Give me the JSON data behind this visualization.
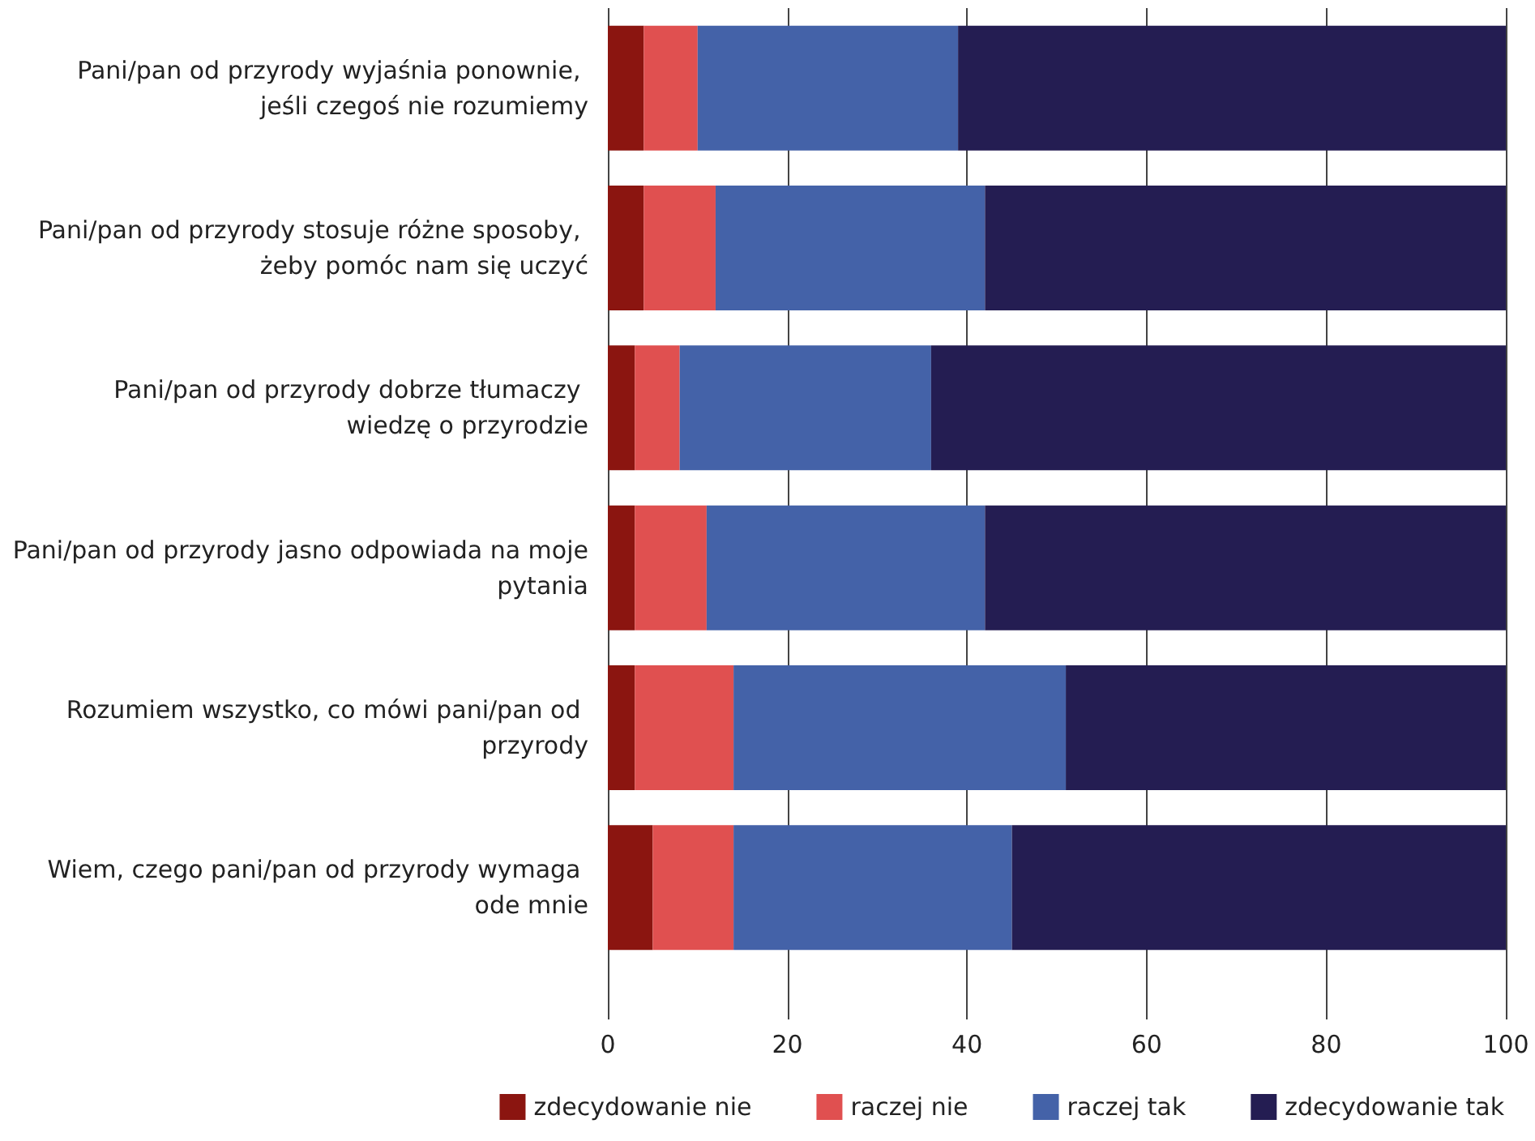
{
  "chart_data": {
    "type": "bar",
    "orientation": "horizontal",
    "stacked": true,
    "categories": [
      "Pani/pan od przyrody wyjaśnia ponownie, jeśli czegoś nie rozumiemy",
      "Pani/pan od przyrody stosuje różne sposoby, żeby pomóc nam się uczyć",
      "Pani/pan od przyrody dobrze tłumaczy wiedzę o przyrodzie",
      "Pani/pan od przyrody jasno odpowiada na moje pytania",
      "Rozumiem wszystko, co mówi pani/pan od przyrody",
      "Wiem, czego pani/pan od przyrody wymaga ode mnie"
    ],
    "series": [
      {
        "name": "zdecydowanie nie",
        "color": "#8b1510",
        "values": [
          4,
          4,
          3,
          3,
          3,
          5
        ]
      },
      {
        "name": "raczej nie",
        "color": "#e05050",
        "values": [
          6,
          8,
          5,
          8,
          11,
          9
        ]
      },
      {
        "name": "raczej tak",
        "color": "#4462a8",
        "values": [
          29,
          30,
          28,
          31,
          37,
          31
        ]
      },
      {
        "name": "zdecydowanie tak",
        "color": "#241d52",
        "values": [
          61,
          58,
          64,
          58,
          49,
          55
        ]
      }
    ],
    "xlim": [
      0,
      100
    ],
    "xticks": [
      0,
      20,
      40,
      60,
      80,
      100
    ],
    "grid": "x",
    "legend": "bottom"
  }
}
